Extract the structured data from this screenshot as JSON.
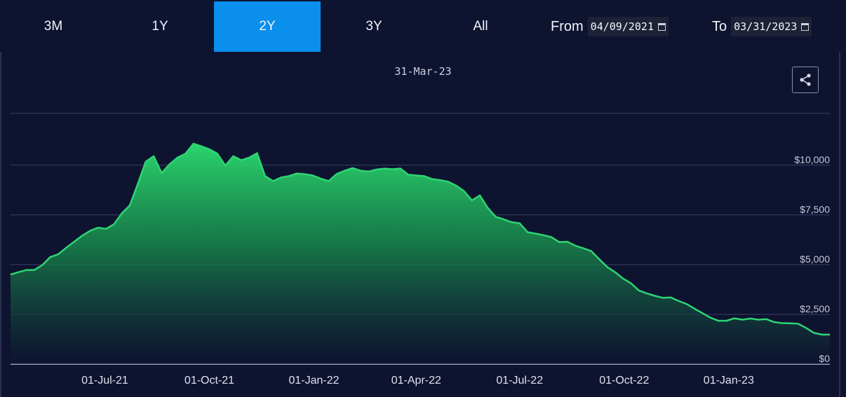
{
  "toolbar": {
    "ranges": [
      {
        "label": "3M",
        "active": false
      },
      {
        "label": "1Y",
        "active": false
      },
      {
        "label": "2Y",
        "active": true
      },
      {
        "label": "3Y",
        "active": false
      },
      {
        "label": "All",
        "active": false
      }
    ],
    "from_label": "From",
    "from_value": "04/09/2021",
    "to_label": "To",
    "to_value": "03/31/2023"
  },
  "colors": {
    "active_button": "#0a8fec",
    "line": "#2ed573",
    "background": "#0e1330"
  },
  "icons": {
    "share": "share-icon",
    "calendar": "calendar-icon"
  },
  "chart_data": {
    "type": "area",
    "hover_label": "31-Mar-23",
    "x_start": "2021-04-09",
    "x_end": "2023-03-31",
    "x_ticks": [
      {
        "date": "2021-07-01",
        "label": "01-Jul-21"
      },
      {
        "date": "2021-10-01",
        "label": "01-Oct-21"
      },
      {
        "date": "2022-01-01",
        "label": "01-Jan-22"
      },
      {
        "date": "2022-04-01",
        "label": "01-Apr-22"
      },
      {
        "date": "2022-07-01",
        "label": "01-Jul-22"
      },
      {
        "date": "2022-10-01",
        "label": "01-Oct-22"
      },
      {
        "date": "2023-01-01",
        "label": "01-Jan-23"
      }
    ],
    "y_ticks": [
      {
        "value": 0,
        "label": "$0"
      },
      {
        "value": 2500,
        "label": "$2,500"
      },
      {
        "value": 5000,
        "label": "$5,000"
      },
      {
        "value": 7500,
        "label": "$7,500"
      },
      {
        "value": 10000,
        "label": "$10,000"
      }
    ],
    "ylim": [
      0,
      12600
    ],
    "grid": true,
    "points": [
      [
        "2021-04-09",
        4500
      ],
      [
        "2021-04-16",
        4620
      ],
      [
        "2021-04-23",
        4730
      ],
      [
        "2021-04-30",
        4730
      ],
      [
        "2021-05-07",
        4980
      ],
      [
        "2021-05-14",
        5380
      ],
      [
        "2021-05-21",
        5520
      ],
      [
        "2021-05-28",
        5850
      ],
      [
        "2021-06-04",
        6150
      ],
      [
        "2021-06-11",
        6450
      ],
      [
        "2021-06-18",
        6700
      ],
      [
        "2021-06-25",
        6860
      ],
      [
        "2021-07-02",
        6800
      ],
      [
        "2021-07-09",
        7030
      ],
      [
        "2021-07-16",
        7580
      ],
      [
        "2021-07-23",
        7980
      ],
      [
        "2021-07-30",
        9050
      ],
      [
        "2021-08-06",
        10180
      ],
      [
        "2021-08-13",
        10450
      ],
      [
        "2021-08-20",
        9600
      ],
      [
        "2021-08-27",
        10050
      ],
      [
        "2021-09-03",
        10380
      ],
      [
        "2021-09-10",
        10580
      ],
      [
        "2021-09-17",
        11080
      ],
      [
        "2021-09-24",
        10950
      ],
      [
        "2021-10-01",
        10800
      ],
      [
        "2021-10-08",
        10580
      ],
      [
        "2021-10-15",
        9980
      ],
      [
        "2021-10-22",
        10450
      ],
      [
        "2021-10-29",
        10250
      ],
      [
        "2021-11-05",
        10380
      ],
      [
        "2021-11-12",
        10600
      ],
      [
        "2021-11-19",
        9450
      ],
      [
        "2021-11-26",
        9200
      ],
      [
        "2021-12-03",
        9380
      ],
      [
        "2021-12-10",
        9450
      ],
      [
        "2021-12-17",
        9580
      ],
      [
        "2021-12-24",
        9550
      ],
      [
        "2021-12-31",
        9480
      ],
      [
        "2022-01-07",
        9320
      ],
      [
        "2022-01-14",
        9200
      ],
      [
        "2022-01-21",
        9560
      ],
      [
        "2022-01-28",
        9720
      ],
      [
        "2022-02-04",
        9850
      ],
      [
        "2022-02-11",
        9720
      ],
      [
        "2022-02-18",
        9680
      ],
      [
        "2022-02-25",
        9780
      ],
      [
        "2022-03-04",
        9830
      ],
      [
        "2022-03-11",
        9800
      ],
      [
        "2022-03-18",
        9830
      ],
      [
        "2022-03-25",
        9520
      ],
      [
        "2022-04-01",
        9480
      ],
      [
        "2022-04-08",
        9450
      ],
      [
        "2022-04-15",
        9300
      ],
      [
        "2022-04-22",
        9250
      ],
      [
        "2022-04-29",
        9170
      ],
      [
        "2022-05-06",
        8980
      ],
      [
        "2022-05-13",
        8700
      ],
      [
        "2022-05-20",
        8230
      ],
      [
        "2022-05-27",
        8480
      ],
      [
        "2022-06-03",
        7850
      ],
      [
        "2022-06-10",
        7400
      ],
      [
        "2022-06-17",
        7280
      ],
      [
        "2022-06-24",
        7130
      ],
      [
        "2022-07-01",
        7080
      ],
      [
        "2022-07-08",
        6630
      ],
      [
        "2022-07-15",
        6560
      ],
      [
        "2022-07-22",
        6480
      ],
      [
        "2022-07-29",
        6380
      ],
      [
        "2022-08-05",
        6130
      ],
      [
        "2022-08-12",
        6150
      ],
      [
        "2022-08-19",
        5950
      ],
      [
        "2022-08-26",
        5820
      ],
      [
        "2022-09-02",
        5680
      ],
      [
        "2022-09-09",
        5280
      ],
      [
        "2022-09-16",
        4880
      ],
      [
        "2022-09-23",
        4620
      ],
      [
        "2022-09-30",
        4300
      ],
      [
        "2022-10-07",
        4060
      ],
      [
        "2022-10-14",
        3700
      ],
      [
        "2022-10-21",
        3550
      ],
      [
        "2022-10-28",
        3430
      ],
      [
        "2022-11-04",
        3330
      ],
      [
        "2022-11-11",
        3350
      ],
      [
        "2022-11-18",
        3170
      ],
      [
        "2022-11-25",
        3020
      ],
      [
        "2022-12-02",
        2780
      ],
      [
        "2022-12-09",
        2560
      ],
      [
        "2022-12-16",
        2330
      ],
      [
        "2022-12-23",
        2180
      ],
      [
        "2022-12-30",
        2180
      ],
      [
        "2023-01-06",
        2300
      ],
      [
        "2023-01-13",
        2230
      ],
      [
        "2023-01-20",
        2290
      ],
      [
        "2023-01-27",
        2230
      ],
      [
        "2023-02-03",
        2260
      ],
      [
        "2023-02-10",
        2110
      ],
      [
        "2023-02-17",
        2060
      ],
      [
        "2023-02-24",
        2050
      ],
      [
        "2023-03-03",
        2030
      ],
      [
        "2023-03-10",
        1820
      ],
      [
        "2023-03-17",
        1570
      ],
      [
        "2023-03-24",
        1480
      ],
      [
        "2023-03-31",
        1480
      ]
    ]
  }
}
